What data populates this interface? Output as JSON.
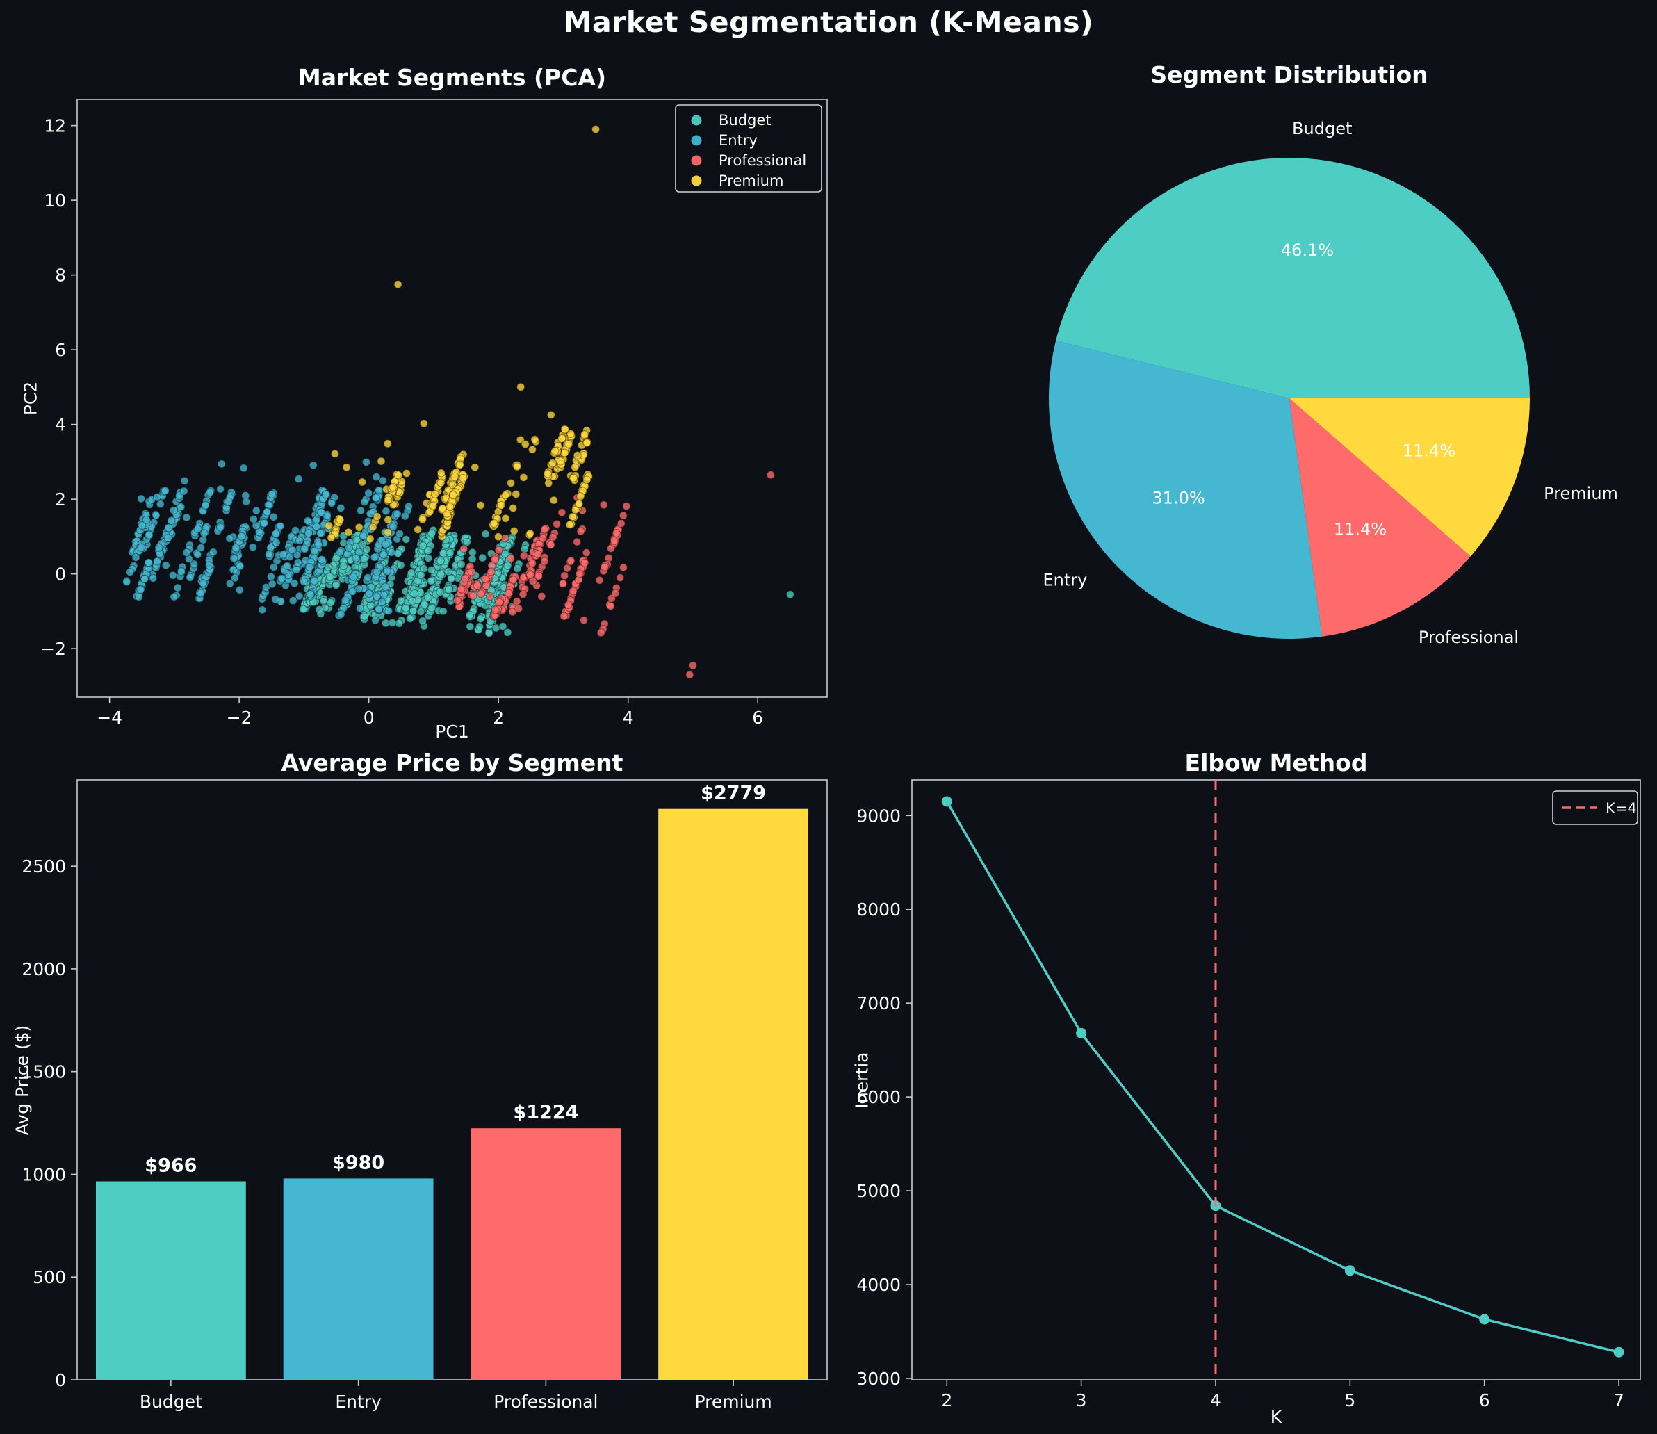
{
  "page": {
    "title": "Market Segmentation (K-Means)",
    "background": "#0d1016",
    "text_color": "#ffffff",
    "spine_color": "#c6cacf"
  },
  "palette": {
    "budget": "#4ECDC4",
    "entry": "#45B7D1",
    "professional": "#FF6B6B",
    "premium": "#FFD93D"
  },
  "chart_data": [
    {
      "type": "scatter",
      "title": "Market Segments (PCA)",
      "xlabel": "PC1",
      "ylabel": "PC2",
      "xlim": [
        -4.5,
        7.07
      ],
      "ylim": [
        -3.3,
        12.7
      ],
      "xticks": [
        -4,
        -2,
        0,
        2,
        4,
        6
      ],
      "yticks": [
        -2,
        0,
        2,
        4,
        6,
        8,
        10,
        12
      ],
      "legend": [
        "Budget",
        "Entry",
        "Professional",
        "Premium"
      ],
      "marker": {
        "radius": 5.5,
        "opacity": 0.78
      },
      "clusters": [
        {
          "name": "Budget",
          "color": "#4ECDC4",
          "count": 880,
          "x_range": [
            -1.05,
            2.25
          ],
          "y_bottom": [
            -1.3,
            -0.22
          ],
          "y_top": [
            0.72,
            -0.04
          ],
          "scatter_above": 0.5
        },
        {
          "name": "Entry",
          "color": "#45B7D1",
          "count": 600,
          "x_range": [
            -3.92,
            0.32
          ],
          "y_bottom": [
            -1.3,
            -0.18
          ],
          "y_top": [
            1.9,
            0.0
          ],
          "scatter_above": 1.1
        },
        {
          "name": "Professional",
          "color": "#FF6B6B",
          "count": 230,
          "x_range": [
            1.35,
            3.65
          ],
          "y_bottom": [
            -0.49,
            -0.38
          ],
          "y_top": [
            -0.71,
            0.75
          ],
          "scatter_above": 0.6
        },
        {
          "name": "Premium",
          "color": "#FFD93D",
          "count": 300,
          "x_range": [
            -0.62,
            3.3
          ],
          "y_bottom": [
            0.62,
            0.03
          ],
          "y_top": [
            2.2,
            0.55
          ],
          "scatter_above": 1.6
        }
      ],
      "outliers": [
        {
          "cluster": "Premium",
          "x": 3.5,
          "y": 11.9
        },
        {
          "cluster": "Premium",
          "x": 0.45,
          "y": 7.75
        },
        {
          "cluster": "Professional",
          "x": 6.2,
          "y": 2.65
        },
        {
          "cluster": "Professional",
          "x": 5.0,
          "y": -2.45
        },
        {
          "cluster": "Professional",
          "x": 4.95,
          "y": -2.7
        },
        {
          "cluster": "Budget",
          "x": 6.5,
          "y": -0.55
        }
      ]
    },
    {
      "type": "pie",
      "title": "Segment Distribution",
      "labels": [
        "Budget",
        "Entry",
        "Professional",
        "Premium"
      ],
      "values": [
        46.1,
        31.0,
        11.4,
        11.4
      ],
      "pct_labels": [
        "46.1%",
        "31.0%",
        "11.4%",
        "11.4%"
      ],
      "colors": [
        "#4ECDC4",
        "#45B7D1",
        "#FF6B6B",
        "#FFD93D"
      ],
      "start_angle": 0,
      "counterclockwise": true
    },
    {
      "type": "bar",
      "title": "Average Price by Segment",
      "ylabel": "Avg Price ($)",
      "categories": [
        "Budget",
        "Entry",
        "Professional",
        "Premium"
      ],
      "values": [
        966,
        980,
        1224,
        2779
      ],
      "bar_labels": [
        "$966",
        "$980",
        "$1224",
        "$2779"
      ],
      "colors": [
        "#4ECDC4",
        "#45B7D1",
        "#FF6B6B",
        "#FFD93D"
      ],
      "yticks": [
        0,
        500,
        1000,
        1500,
        2000,
        2500
      ],
      "ylim": [
        0,
        2920
      ]
    },
    {
      "type": "line",
      "title": "Elbow Method",
      "xlabel": "K",
      "ylabel": "Inertia",
      "x": [
        2,
        3,
        4,
        5,
        6,
        7
      ],
      "y": [
        9150,
        6680,
        4840,
        4150,
        3630,
        3280
      ],
      "color": "#4ECDC4",
      "xticks": [
        2,
        3,
        4,
        5,
        6,
        7
      ],
      "yticks": [
        3000,
        4000,
        5000,
        6000,
        7000,
        8000,
        9000
      ],
      "xlim": [
        1.74,
        7.16
      ],
      "ylim": [
        2985,
        9380
      ],
      "vline": {
        "x": 4,
        "color": "#FF6B6B",
        "style": "dashed",
        "label": "K=4"
      }
    }
  ]
}
